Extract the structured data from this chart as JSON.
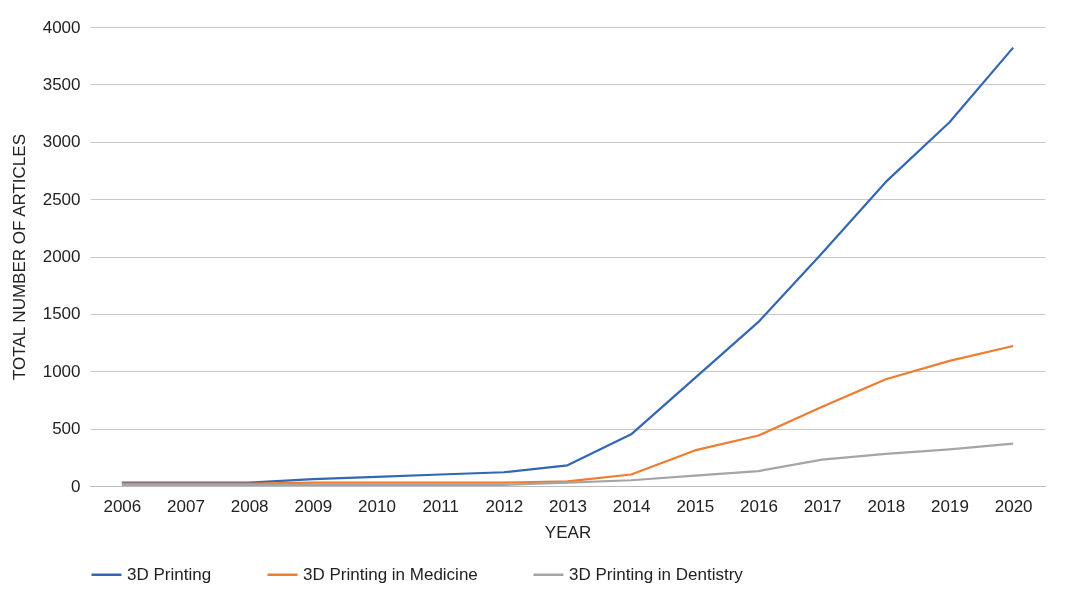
{
  "chart_data": {
    "type": "line",
    "xlabel": "YEAR",
    "ylabel": "TOTAL NUMBER OF ARTICLES",
    "categories": [
      "2006",
      "2007",
      "2008",
      "2009",
      "2010",
      "2011",
      "2012",
      "2013",
      "2014",
      "2015",
      "2016",
      "2017",
      "2018",
      "2019",
      "2020"
    ],
    "series": [
      {
        "name": "3D Printing",
        "color": "#3366b3",
        "values": [
          30,
          30,
          30,
          60,
          80,
          100,
          120,
          180,
          450,
          940,
          1430,
          2030,
          2650,
          3170,
          3820
        ]
      },
      {
        "name": "3D Printing in Medicine",
        "color": "#ed7d31",
        "values": [
          20,
          20,
          20,
          30,
          30,
          30,
          30,
          40,
          100,
          310,
          440,
          690,
          930,
          1090,
          1220
        ]
      },
      {
        "name": "3D Printing in Dentistry",
        "color": "#a5a5a5",
        "values": [
          10,
          10,
          10,
          10,
          10,
          10,
          10,
          30,
          50,
          90,
          130,
          230,
          280,
          320,
          370
        ]
      }
    ],
    "ylim": [
      0,
      4000
    ],
    "yticks": [
      0,
      500,
      1000,
      1500,
      2000,
      2500,
      3000,
      3500,
      4000
    ],
    "grid": "y",
    "legend": "bottom",
    "marker": "none",
    "line_style": "solid"
  }
}
